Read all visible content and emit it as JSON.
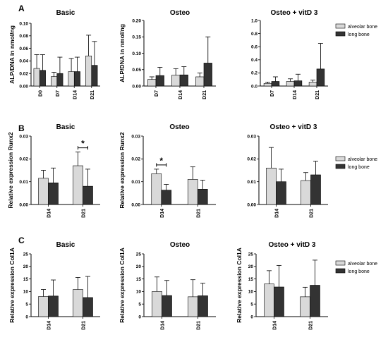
{
  "panels": [
    {
      "letter": "A",
      "legend": [
        {
          "label": "alveolar bone",
          "color": "#d9d9d9"
        },
        {
          "label": "long bone",
          "color": "#333333"
        }
      ]
    },
    {
      "letter": "B",
      "legend": [
        {
          "label": "alveolar bone",
          "color": "#d9d9d9"
        },
        {
          "label": "long bone",
          "color": "#333333"
        }
      ]
    },
    {
      "letter": "C",
      "legend": [
        {
          "label": "alveolar bone",
          "color": "#d9d9d9"
        },
        {
          "label": "long bone",
          "color": "#333333"
        }
      ]
    }
  ],
  "chart_data": [
    {
      "type": "bar",
      "panel": "A",
      "title": "Basic",
      "ylabel": "ALP/DNA in nmol/ng",
      "categories": [
        "D0",
        "D7",
        "D14",
        "D21"
      ],
      "ylim": [
        0,
        0.1
      ],
      "yticks": [
        "0.00",
        "0.02",
        "0.04",
        "0.06",
        "0.08",
        "0.10"
      ],
      "series": [
        {
          "name": "alveolar bone",
          "values": [
            0.028,
            0.015,
            0.023,
            0.048
          ],
          "errors": [
            0.022,
            0.007,
            0.021,
            0.033
          ]
        },
        {
          "name": "long bone",
          "values": [
            0.025,
            0.02,
            0.023,
            0.033
          ],
          "errors": [
            0.025,
            0.026,
            0.023,
            0.038
          ]
        }
      ]
    },
    {
      "type": "bar",
      "panel": "A",
      "title": "Osteo",
      "ylabel": "ALP/DNA in nmol/ng",
      "categories": [
        "D7",
        "D14",
        "D21"
      ],
      "ylim": [
        0,
        0.2
      ],
      "yticks": [
        "0.00",
        "0.05",
        "0.10",
        "0.15",
        "0.20"
      ],
      "series": [
        {
          "name": "alveolar bone",
          "values": [
            0.02,
            0.033,
            0.028
          ],
          "errors": [
            0.008,
            0.02,
            0.012
          ]
        },
        {
          "name": "long bone",
          "values": [
            0.032,
            0.034,
            0.07
          ],
          "errors": [
            0.025,
            0.025,
            0.08
          ]
        }
      ]
    },
    {
      "type": "bar",
      "panel": "A",
      "title": "Osteo + vitD 3",
      "ylabel": "",
      "categories": [
        "D7",
        "D14",
        "D21"
      ],
      "ylim": [
        0,
        1.0
      ],
      "yticks": [
        "0.0",
        "0.2",
        "0.4",
        "0.6",
        "0.8",
        "1.0"
      ],
      "series": [
        {
          "name": "alveolar bone",
          "values": [
            0.04,
            0.07,
            0.06
          ],
          "errors": [
            0.02,
            0.04,
            0.03
          ]
        },
        {
          "name": "long bone",
          "values": [
            0.07,
            0.08,
            0.26
          ],
          "errors": [
            0.07,
            0.1,
            0.39
          ]
        }
      ]
    },
    {
      "type": "bar",
      "panel": "B",
      "title": "Basic",
      "ylabel": "Relative expression Runx2",
      "categories": [
        "D14",
        "D21"
      ],
      "ylim": [
        0,
        0.03
      ],
      "yticks": [
        "0.00",
        "0.01",
        "0.02",
        "0.03"
      ],
      "significance": [
        {
          "category": "D21",
          "label": "*"
        }
      ],
      "series": [
        {
          "name": "alveolar bone",
          "values": [
            0.0115,
            0.017
          ],
          "errors": [
            0.0035,
            0.006
          ]
        },
        {
          "name": "long bone",
          "values": [
            0.0095,
            0.008
          ],
          "errors": [
            0.0065,
            0.0075
          ]
        }
      ]
    },
    {
      "type": "bar",
      "panel": "B",
      "title": "Osteo",
      "ylabel": "Relative expression Runx2",
      "categories": [
        "D14",
        "D21"
      ],
      "ylim": [
        0,
        0.03
      ],
      "yticks": [
        "0.00",
        "0.01",
        "0.02",
        "0.03"
      ],
      "significance": [
        {
          "category": "D14",
          "label": "*"
        }
      ],
      "series": [
        {
          "name": "alveolar bone",
          "values": [
            0.0135,
            0.011
          ],
          "errors": [
            0.002,
            0.0055
          ]
        },
        {
          "name": "long bone",
          "values": [
            0.0063,
            0.0067
          ],
          "errors": [
            0.0025,
            0.004
          ]
        }
      ]
    },
    {
      "type": "bar",
      "panel": "B",
      "title": "Osteo + vitD 3",
      "ylabel": "",
      "categories": [
        "D14",
        "D21"
      ],
      "ylim": [
        0,
        0.03
      ],
      "yticks": [
        "0.00",
        "0.01",
        "0.02",
        "0.03"
      ],
      "series": [
        {
          "name": "alveolar bone",
          "values": [
            0.016,
            0.0105
          ],
          "errors": [
            0.009,
            0.0035
          ]
        },
        {
          "name": "long bone",
          "values": [
            0.01,
            0.013
          ],
          "errors": [
            0.0055,
            0.006
          ]
        }
      ]
    },
    {
      "type": "bar",
      "panel": "C",
      "title": "Basic",
      "ylabel": "Relative expression Col1A",
      "categories": [
        "D14",
        "D21"
      ],
      "ylim": [
        0,
        25
      ],
      "yticks": [
        "0",
        "5",
        "10",
        "15",
        "20",
        "25"
      ],
      "series": [
        {
          "name": "alveolar bone",
          "values": [
            8.0,
            10.8
          ],
          "errors": [
            2.8,
            4.8
          ]
        },
        {
          "name": "long bone",
          "values": [
            8.2,
            7.6
          ],
          "errors": [
            6.4,
            8.4
          ]
        }
      ]
    },
    {
      "type": "bar",
      "panel": "C",
      "title": "Osteo",
      "ylabel": "Relative expression Col1A",
      "categories": [
        "D14",
        "D21"
      ],
      "ylim": [
        0,
        25
      ],
      "yticks": [
        "0",
        "5",
        "10",
        "15",
        "20",
        "25"
      ],
      "series": [
        {
          "name": "alveolar bone",
          "values": [
            10.0,
            7.9
          ],
          "errors": [
            5.8,
            6.8
          ]
        },
        {
          "name": "long bone",
          "values": [
            8.4,
            8.3
          ],
          "errors": [
            6.0,
            5.0
          ]
        }
      ]
    },
    {
      "type": "bar",
      "panel": "C",
      "title": "Osteo + vitD 3",
      "ylabel": "Relative expression Col1A",
      "categories": [
        "D14",
        "D21"
      ],
      "ylim": [
        0,
        25
      ],
      "yticks": [
        "0",
        "5",
        "10",
        "15",
        "20",
        "25"
      ],
      "series": [
        {
          "name": "alveolar bone",
          "values": [
            13.0,
            7.9
          ],
          "errors": [
            5.3,
            3.8
          ]
        },
        {
          "name": "long bone",
          "values": [
            11.8,
            12.5
          ],
          "errors": [
            8.6,
            10.0
          ]
        }
      ]
    }
  ]
}
